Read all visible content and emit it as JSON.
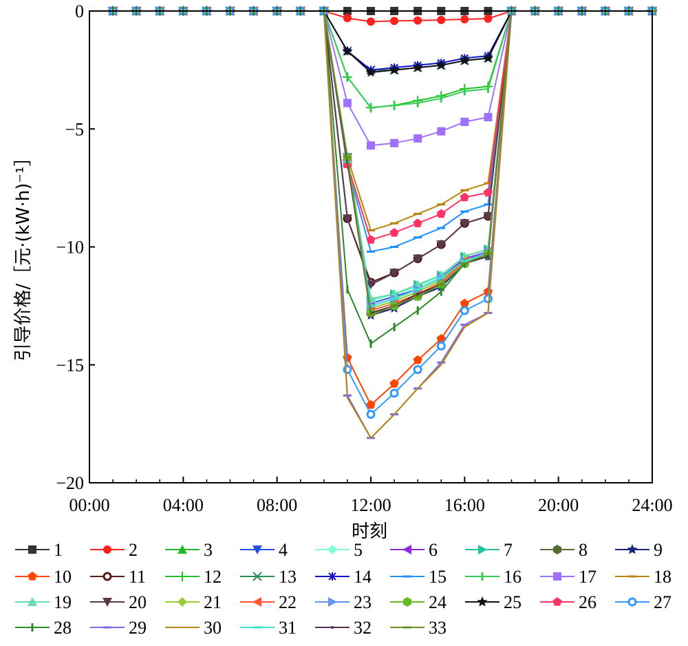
{
  "chart_data": {
    "type": "line",
    "title": "",
    "xlabel": "时刻",
    "ylabel": "引导价格/［元·(kW·h)⁻¹］",
    "xlim": [
      "00:00",
      "24:00"
    ],
    "ylim": [
      -20,
      0
    ],
    "x_ticks": [
      "00:00",
      "04:00",
      "08:00",
      "12:00",
      "16:00",
      "20:00",
      "24:00"
    ],
    "y_ticks": [
      "0",
      "−5",
      "−10",
      "−15",
      "−20"
    ],
    "y_tick_values": [
      0,
      -5,
      -10,
      -15,
      -20
    ],
    "grid": false,
    "legend_position": "bottom",
    "hours": [
      1,
      2,
      3,
      4,
      5,
      6,
      7,
      8,
      9,
      10,
      11,
      12,
      13,
      14,
      15,
      16,
      17,
      18,
      19,
      20,
      21,
      22,
      23,
      24
    ],
    "series": [
      {
        "name": "1",
        "color": "#333333",
        "marker": "square",
        "values": [
          0,
          0,
          0,
          0,
          0,
          0,
          0,
          0,
          0,
          0,
          0,
          0,
          0,
          0,
          0,
          0,
          0,
          0,
          0,
          0,
          0,
          0,
          0,
          0
        ]
      },
      {
        "name": "2",
        "color": "#ff2020",
        "marker": "circle",
        "values": [
          0,
          0,
          0,
          0,
          0,
          0,
          0,
          0,
          0,
          0,
          -0.3,
          -0.45,
          -0.42,
          -0.4,
          -0.38,
          -0.35,
          -0.32,
          0,
          0,
          0,
          0,
          0,
          0,
          0
        ]
      },
      {
        "name": "3",
        "color": "#22b82a",
        "marker": "triangle-up",
        "values": [
          0,
          0,
          0,
          0,
          0,
          0,
          0,
          0,
          0,
          0,
          -6.4,
          -12.6,
          -12.3,
          -11.9,
          -11.4,
          -10.6,
          -10.3,
          0,
          0,
          0,
          0,
          0,
          0,
          0
        ]
      },
      {
        "name": "4",
        "color": "#2250e8",
        "marker": "triangle-down",
        "values": [
          0,
          0,
          0,
          0,
          0,
          0,
          0,
          0,
          0,
          0,
          -6.2,
          -12.4,
          -12.1,
          -11.8,
          -11.3,
          -10.5,
          -10.2,
          0,
          0,
          0,
          0,
          0,
          0,
          0
        ]
      },
      {
        "name": "5",
        "color": "#7fffd4",
        "marker": "diamond",
        "values": [
          0,
          0,
          0,
          0,
          0,
          0,
          0,
          0,
          0,
          0,
          -6.3,
          -12.3,
          -12.0,
          -11.7,
          -11.2,
          -10.5,
          -10.2,
          0,
          0,
          0,
          0,
          0,
          0,
          0
        ]
      },
      {
        "name": "6",
        "color": "#8a2be2",
        "marker": "triangle-left",
        "values": [
          0,
          0,
          0,
          0,
          0,
          0,
          0,
          0,
          0,
          0,
          -6.3,
          -12.5,
          -12.2,
          -11.8,
          -11.3,
          -10.5,
          -10.2,
          0,
          0,
          0,
          0,
          0,
          0,
          0
        ]
      },
      {
        "name": "7",
        "color": "#20c0a0",
        "marker": "triangle-right",
        "values": [
          0,
          0,
          0,
          0,
          0,
          0,
          0,
          0,
          0,
          0,
          -6.2,
          -12.2,
          -12.0,
          -11.6,
          -11.2,
          -10.4,
          -10.1,
          0,
          0,
          0,
          0,
          0,
          0,
          0
        ]
      },
      {
        "name": "8",
        "color": "#556b2f",
        "marker": "hexagon",
        "values": [
          0,
          0,
          0,
          0,
          0,
          0,
          0,
          0,
          0,
          0,
          -6.2,
          -12.8,
          -12.5,
          -12.0,
          -11.6,
          -10.7,
          -10.3,
          0,
          0,
          0,
          0,
          0,
          0,
          0
        ]
      },
      {
        "name": "9",
        "color": "#1a237e",
        "marker": "star",
        "values": [
          0,
          0,
          0,
          0,
          0,
          0,
          0,
          0,
          0,
          0,
          -6.4,
          -12.9,
          -12.6,
          -12.1,
          -11.7,
          -10.7,
          -10.4,
          0,
          0,
          0,
          0,
          0,
          0,
          0
        ]
      },
      {
        "name": "10",
        "color": "#ff4500",
        "marker": "pentagon",
        "values": [
          0,
          0,
          0,
          0,
          0,
          0,
          0,
          0,
          0,
          0,
          -14.7,
          -16.7,
          -15.8,
          -14.8,
          -13.9,
          -12.4,
          -11.9,
          0,
          0,
          0,
          0,
          0,
          0,
          0
        ]
      },
      {
        "name": "11",
        "color": "#5a1a1a",
        "marker": "ring",
        "values": [
          0,
          0,
          0,
          0,
          0,
          0,
          0,
          0,
          0,
          0,
          -8.8,
          -11.5,
          -11.1,
          -10.5,
          -9.9,
          -9.0,
          -8.7,
          0,
          0,
          0,
          0,
          0,
          0,
          0
        ]
      },
      {
        "name": "12",
        "color": "#22c322",
        "marker": "plus",
        "values": [
          0,
          0,
          0,
          0,
          0,
          0,
          0,
          0,
          0,
          0,
          -2.8,
          -4.1,
          -4.0,
          -3.8,
          -3.6,
          -3.3,
          -3.2,
          0,
          0,
          0,
          0,
          0,
          0,
          0
        ]
      },
      {
        "name": "13",
        "color": "#2e8b57",
        "marker": "x",
        "values": [
          0,
          0,
          0,
          0,
          0,
          0,
          0,
          0,
          0,
          0,
          -1.7,
          -2.5,
          -2.5,
          -2.4,
          -2.3,
          -2.1,
          -2.0,
          0,
          0,
          0,
          0,
          0,
          0,
          0
        ]
      },
      {
        "name": "14",
        "color": "#1111cc",
        "marker": "asterisk",
        "values": [
          0,
          0,
          0,
          0,
          0,
          0,
          0,
          0,
          0,
          0,
          -1.7,
          -2.5,
          -2.4,
          -2.3,
          -2.2,
          -2.0,
          -1.9,
          0,
          0,
          0,
          0,
          0,
          0,
          0
        ]
      },
      {
        "name": "15",
        "color": "#1e90ff",
        "marker": "hline",
        "values": [
          0,
          0,
          0,
          0,
          0,
          0,
          0,
          0,
          0,
          0,
          -6.6,
          -10.2,
          -10.0,
          -9.6,
          -9.2,
          -8.5,
          -8.2,
          0,
          0,
          0,
          0,
          0,
          0,
          0
        ]
      },
      {
        "name": "16",
        "color": "#33cc55",
        "marker": "vline",
        "values": [
          0,
          0,
          0,
          0,
          0,
          0,
          0,
          0,
          0,
          0,
          -2.8,
          -4.1,
          -4.0,
          -3.9,
          -3.7,
          -3.4,
          -3.3,
          0,
          0,
          0,
          0,
          0,
          0,
          0
        ]
      },
      {
        "name": "17",
        "color": "#a070ff",
        "marker": "square",
        "values": [
          0,
          0,
          0,
          0,
          0,
          0,
          0,
          0,
          0,
          0,
          -3.9,
          -5.7,
          -5.6,
          -5.4,
          -5.1,
          -4.7,
          -4.5,
          0,
          0,
          0,
          0,
          0,
          0,
          0
        ]
      },
      {
        "name": "18",
        "color": "#b8860b",
        "marker": "hline",
        "values": [
          0,
          0,
          0,
          0,
          0,
          0,
          0,
          0,
          0,
          0,
          -6.2,
          -9.3,
          -9.0,
          -8.6,
          -8.2,
          -7.6,
          -7.3,
          0,
          0,
          0,
          0,
          0,
          0,
          0
        ]
      },
      {
        "name": "19",
        "color": "#66ddaa",
        "marker": "triangle-up",
        "values": [
          0,
          0,
          0,
          0,
          0,
          0,
          0,
          0,
          0,
          0,
          -6.2,
          -12.2,
          -12.0,
          -11.6,
          -11.2,
          -10.4,
          -10.1,
          0,
          0,
          0,
          0,
          0,
          0,
          0
        ]
      },
      {
        "name": "20",
        "color": "#5a3a4a",
        "marker": "triangle-down",
        "values": [
          0,
          0,
          0,
          0,
          0,
          0,
          0,
          0,
          0,
          0,
          -8.8,
          -11.6,
          -11.1,
          -10.5,
          -9.9,
          -9.0,
          -8.7,
          0,
          0,
          0,
          0,
          0,
          0,
          0
        ]
      },
      {
        "name": "21",
        "color": "#99cc33",
        "marker": "diamond",
        "values": [
          0,
          0,
          0,
          0,
          0,
          0,
          0,
          0,
          0,
          0,
          -6.3,
          -12.6,
          -12.3,
          -11.9,
          -11.4,
          -10.6,
          -10.3,
          0,
          0,
          0,
          0,
          0,
          0,
          0
        ]
      },
      {
        "name": "22",
        "color": "#ff5533",
        "marker": "triangle-left",
        "values": [
          0,
          0,
          0,
          0,
          0,
          0,
          0,
          0,
          0,
          0,
          -6.3,
          -12.7,
          -12.4,
          -12.0,
          -11.5,
          -10.6,
          -10.3,
          0,
          0,
          0,
          0,
          0,
          0,
          0
        ]
      },
      {
        "name": "23",
        "color": "#6495ed",
        "marker": "triangle-right",
        "values": [
          0,
          0,
          0,
          0,
          0,
          0,
          0,
          0,
          0,
          0,
          -6.3,
          -12.5,
          -12.2,
          -11.8,
          -11.3,
          -10.6,
          -10.2,
          0,
          0,
          0,
          0,
          0,
          0,
          0
        ]
      },
      {
        "name": "24",
        "color": "#66bb22",
        "marker": "hexagon",
        "values": [
          0,
          0,
          0,
          0,
          0,
          0,
          0,
          0,
          0,
          0,
          -6.2,
          -12.8,
          -12.5,
          -12.1,
          -11.6,
          -10.7,
          -10.3,
          0,
          0,
          0,
          0,
          0,
          0,
          0
        ]
      },
      {
        "name": "25",
        "color": "#111111",
        "marker": "star",
        "values": [
          0,
          0,
          0,
          0,
          0,
          0,
          0,
          0,
          0,
          0,
          -1.7,
          -2.6,
          -2.5,
          -2.4,
          -2.3,
          -2.1,
          -2.0,
          0,
          0,
          0,
          0,
          0,
          0,
          0
        ]
      },
      {
        "name": "26",
        "color": "#ff3366",
        "marker": "pentagon",
        "values": [
          0,
          0,
          0,
          0,
          0,
          0,
          0,
          0,
          0,
          0,
          -6.5,
          -9.7,
          -9.4,
          -9.0,
          -8.6,
          -7.9,
          -7.7,
          0,
          0,
          0,
          0,
          0,
          0,
          0
        ]
      },
      {
        "name": "27",
        "color": "#3399ff",
        "marker": "ring",
        "values": [
          0,
          0,
          0,
          0,
          0,
          0,
          0,
          0,
          0,
          0,
          -15.2,
          -17.1,
          -16.2,
          -15.2,
          -14.2,
          -12.7,
          -12.2,
          0,
          0,
          0,
          0,
          0,
          0,
          0
        ]
      },
      {
        "name": "28",
        "color": "#2a8a2a",
        "marker": "vline",
        "values": [
          0,
          0,
          0,
          0,
          0,
          0,
          0,
          0,
          0,
          0,
          -11.8,
          -14.1,
          -13.4,
          -12.7,
          -11.9,
          -10.7,
          -10.4,
          0,
          0,
          0,
          0,
          0,
          0,
          0
        ]
      },
      {
        "name": "29",
        "color": "#7b68ee",
        "marker": "hline",
        "values": [
          0,
          0,
          0,
          0,
          0,
          0,
          0,
          0,
          0,
          0,
          -16.3,
          -18.1,
          -17.1,
          -16.0,
          -14.9,
          -13.3,
          -12.8,
          0,
          0,
          0,
          0,
          0,
          0,
          0
        ]
      },
      {
        "name": "30",
        "color": "#b8860b",
        "marker": "bowtie",
        "values": [
          0,
          0,
          0,
          0,
          0,
          0,
          0,
          0,
          0,
          0,
          -16.4,
          -18.1,
          -17.1,
          -16.0,
          -15.0,
          -13.4,
          -12.8,
          0,
          0,
          0,
          0,
          0,
          0,
          0
        ]
      },
      {
        "name": "31",
        "color": "#40e0d0",
        "marker": "hline",
        "values": [
          0,
          0,
          0,
          0,
          0,
          0,
          0,
          0,
          0,
          0,
          -6.4,
          -12.5,
          -12.2,
          -11.8,
          -11.3,
          -10.6,
          -10.3,
          0,
          0,
          0,
          0,
          0,
          0,
          0
        ]
      },
      {
        "name": "32",
        "color": "#4b2f4b",
        "marker": "dot",
        "values": [
          0,
          0,
          0,
          0,
          0,
          0,
          0,
          0,
          0,
          0,
          -6.4,
          -12.8,
          -12.5,
          -12.0,
          -11.6,
          -10.7,
          -10.4,
          0,
          0,
          0,
          0,
          0,
          0,
          0
        ]
      },
      {
        "name": "33",
        "color": "#6b8e23",
        "marker": "hline",
        "values": [
          0,
          0,
          0,
          0,
          0,
          0,
          0,
          0,
          0,
          0,
          -6.2,
          -12.9,
          -12.5,
          -12.1,
          -11.6,
          -10.7,
          -10.3,
          0,
          0,
          0,
          0,
          0,
          0,
          0
        ]
      }
    ]
  }
}
